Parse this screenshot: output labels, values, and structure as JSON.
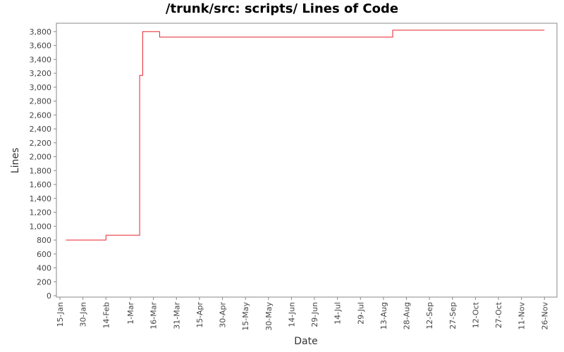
{
  "chart_data": {
    "type": "line",
    "title": "/trunk/src: scripts/ Lines of Code",
    "xlabel": "Date",
    "ylabel": "Lines",
    "ylim": [
      0,
      3900
    ],
    "yticks": [
      0,
      200,
      400,
      600,
      800,
      1000,
      1200,
      1400,
      1600,
      1800,
      2000,
      2200,
      2400,
      2600,
      2800,
      3000,
      3200,
      3400,
      3600,
      3800
    ],
    "ytick_labels": [
      "0",
      "200",
      "400",
      "600",
      "800",
      "1,000",
      "1,200",
      "1,400",
      "1,600",
      "1,800",
      "2,000",
      "2,200",
      "2,400",
      "2,600",
      "2,800",
      "3,000",
      "3,200",
      "3,400",
      "3,600",
      "3,800"
    ],
    "xlim": [
      "2000-01-15",
      "2000-11-30"
    ],
    "xticks": [
      "2000-01-15",
      "2000-01-30",
      "2000-02-14",
      "2000-03-01",
      "2000-03-16",
      "2000-03-31",
      "2000-04-15",
      "2000-04-30",
      "2000-05-15",
      "2000-05-30",
      "2000-06-14",
      "2000-06-29",
      "2000-07-14",
      "2000-07-29",
      "2000-08-13",
      "2000-08-28",
      "2000-09-12",
      "2000-09-27",
      "2000-10-12",
      "2000-10-27",
      "2000-11-11",
      "2000-11-26"
    ],
    "xtick_labels": [
      "15-Jan",
      "30-Jan",
      "14-Feb",
      "1-Mar",
      "16-Mar",
      "31-Mar",
      "15-Apr",
      "30-Apr",
      "15-May",
      "30-May",
      "14-Jun",
      "29-Jun",
      "14-Jul",
      "29-Jul",
      "13-Aug",
      "28-Aug",
      "12-Sep",
      "27-Sep",
      "12-Oct",
      "27-Oct",
      "11-Nov",
      "26-Nov"
    ],
    "grid": false,
    "series": [
      {
        "color": "#e8212b",
        "step": true,
        "points": [
          {
            "x": "2000-01-19",
            "y": 800
          },
          {
            "x": "2000-02-14",
            "y": 800
          },
          {
            "x": "2000-02-14",
            "y": 870
          },
          {
            "x": "2000-03-07",
            "y": 870
          },
          {
            "x": "2000-03-07",
            "y": 3170
          },
          {
            "x": "2000-03-09",
            "y": 3170
          },
          {
            "x": "2000-03-09",
            "y": 3800
          },
          {
            "x": "2000-03-20",
            "y": 3800
          },
          {
            "x": "2000-03-20",
            "y": 3720
          },
          {
            "x": "2000-08-19",
            "y": 3720
          },
          {
            "x": "2000-08-19",
            "y": 3820
          },
          {
            "x": "2000-11-26",
            "y": 3820
          }
        ]
      }
    ]
  }
}
